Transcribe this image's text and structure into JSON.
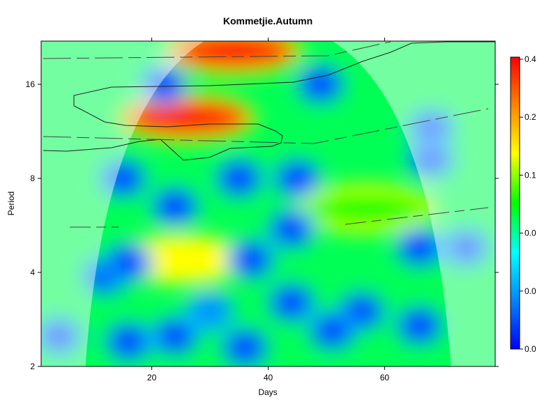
{
  "chart_data": {
    "type": "heatmap",
    "title": "Kommetjie.Autumn",
    "xlabel": "Days",
    "ylabel": "Period",
    "xlim": [
      1,
      79
    ],
    "ylim_period": [
      2,
      22
    ],
    "y_scale": "log2",
    "x_ticks": [
      20,
      40,
      60
    ],
    "y_ticks": [
      2,
      4,
      8,
      16
    ],
    "colorbar": {
      "ticks": [
        "0.0",
        "0.0",
        "0.0",
        "0.1",
        "0.2",
        "0.4"
      ],
      "colors": [
        "#0000ff",
        "#0088ff",
        "#00ffff",
        "#00ff00",
        "#ffff00",
        "#ff8800",
        "#ff0000"
      ],
      "min": 0,
      "max": 0.4
    },
    "features": [
      {
        "kind": "high",
        "x": 26,
        "period": 12.5,
        "level": 0.4
      },
      {
        "kind": "high",
        "x": 34,
        "period": 20.5,
        "level": 0.4
      },
      {
        "kind": "high",
        "x": 25,
        "period": 4.4,
        "level": 0.25
      },
      {
        "kind": "high",
        "x": 57,
        "period": 6.4,
        "level": 0.22
      },
      {
        "kind": "low",
        "x": 22,
        "period": 16,
        "level": 0.0
      },
      {
        "kind": "low",
        "x": 49,
        "period": 16,
        "level": 0.0
      },
      {
        "kind": "low",
        "x": 68,
        "period": 11.6,
        "level": 0.0
      },
      {
        "kind": "low",
        "x": 68,
        "period": 9.2,
        "level": 0.0
      },
      {
        "kind": "low",
        "x": 15,
        "period": 8,
        "level": 0.0
      },
      {
        "kind": "low",
        "x": 35,
        "period": 8,
        "level": 0.0
      },
      {
        "kind": "low",
        "x": 45,
        "period": 8,
        "level": 0.0
      },
      {
        "kind": "low",
        "x": 24,
        "period": 6.5,
        "level": 0.0
      },
      {
        "kind": "low",
        "x": 44,
        "period": 5.5,
        "level": 0.0
      },
      {
        "kind": "low",
        "x": 12,
        "period": 3.9,
        "level": 0.0
      },
      {
        "kind": "low",
        "x": 16,
        "period": 4.3,
        "level": 0.0
      },
      {
        "kind": "low",
        "x": 37,
        "period": 4.4,
        "level": 0.0
      },
      {
        "kind": "low",
        "x": 66,
        "period": 4.8,
        "level": 0.0
      },
      {
        "kind": "low",
        "x": 74,
        "period": 4.8,
        "level": 0.0
      },
      {
        "kind": "low",
        "x": 30,
        "period": 3.0,
        "level": 0.05
      },
      {
        "kind": "low",
        "x": 4,
        "period": 2.5,
        "level": 0.0
      },
      {
        "kind": "low",
        "x": 16,
        "period": 2.4,
        "level": 0.0
      },
      {
        "kind": "low",
        "x": 24,
        "period": 2.5,
        "level": 0.0
      },
      {
        "kind": "low",
        "x": 44,
        "period": 3.2,
        "level": 0.0
      },
      {
        "kind": "low",
        "x": 56,
        "period": 3.0,
        "level": 0.0
      },
      {
        "kind": "low",
        "x": 66,
        "period": 2.7,
        "level": 0.0
      },
      {
        "kind": "low",
        "x": 51,
        "period": 2.6,
        "level": 0.0
      },
      {
        "kind": "low",
        "x": 36,
        "period": 2.3,
        "level": 0.0
      }
    ]
  }
}
